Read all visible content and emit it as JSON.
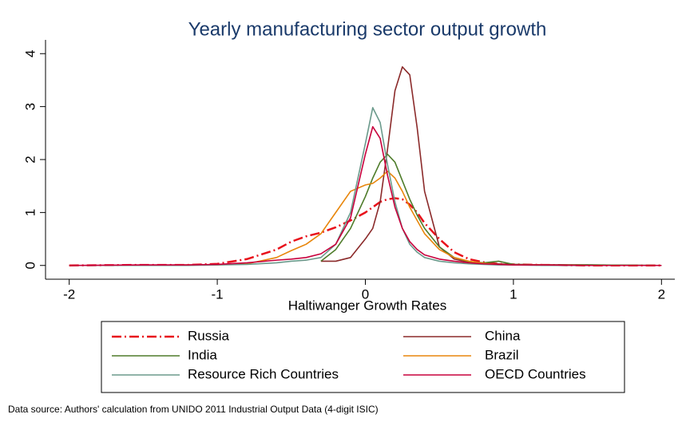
{
  "chart_data": {
    "type": "line",
    "title": "Yearly manufacturing sector output growth",
    "x_label": "Haltiwanger Growth Rates",
    "note": "Data source: Authors' calculation from UNIDO 2011 Industrial Output Data (4-digit ISIC)",
    "x": [
      -2,
      -1.5,
      -1.2,
      -1,
      -0.8,
      -0.6,
      -0.5,
      -0.4,
      -0.3,
      -0.2,
      -0.1,
      0,
      0.05,
      0.1,
      0.15,
      0.2,
      0.25,
      0.3,
      0.35,
      0.4,
      0.5,
      0.6,
      0.7,
      0.8,
      0.9,
      1,
      1.2,
      1.5,
      2
    ],
    "xlim": [
      -2.16,
      2.09
    ],
    "ylim": [
      -0.26,
      4.26
    ],
    "xticks": [
      -2,
      -1,
      0,
      1,
      2
    ],
    "yticks": [
      0,
      1,
      2,
      3,
      4
    ],
    "series": [
      {
        "name": "Russia",
        "color": "#e8111b",
        "line_style": "dash-dot",
        "values": [
          0,
          0.01,
          0.01,
          0.03,
          0.12,
          0.3,
          0.45,
          0.55,
          0.62,
          0.72,
          0.85,
          1.0,
          1.1,
          1.2,
          1.25,
          1.27,
          1.25,
          1.15,
          1.0,
          0.8,
          0.5,
          0.25,
          0.12,
          0.06,
          0.03,
          0.02,
          0.01,
          0,
          0
        ]
      },
      {
        "name": "China",
        "color": "#8b2a2a",
        "values": [
          null,
          null,
          null,
          null,
          null,
          null,
          null,
          null,
          0.08,
          0.08,
          0.15,
          0.5,
          0.7,
          1.2,
          2.2,
          3.3,
          3.75,
          3.6,
          2.6,
          1.4,
          0.35,
          0.12,
          0.06,
          0.04,
          0.03,
          0.02,
          0.01,
          0.01,
          0
        ]
      },
      {
        "name": "India",
        "color": "#4e7c2a",
        "values": [
          null,
          null,
          null,
          null,
          null,
          null,
          null,
          null,
          0.08,
          0.3,
          0.7,
          1.3,
          1.65,
          1.95,
          2.1,
          1.95,
          1.6,
          1.25,
          0.95,
          0.7,
          0.35,
          0.15,
          0.07,
          0.05,
          0.08,
          0.02,
          0.01,
          0.01,
          0
        ]
      },
      {
        "name": "Brazil",
        "color": "#e8860b",
        "values": [
          0,
          0,
          0.01,
          0.01,
          0.03,
          0.15,
          0.28,
          0.4,
          0.6,
          1.0,
          1.4,
          1.52,
          1.55,
          1.65,
          1.78,
          1.65,
          1.4,
          1.1,
          0.85,
          0.6,
          0.3,
          0.15,
          0.08,
          0.04,
          0.02,
          0.01,
          0.01,
          0,
          0
        ]
      },
      {
        "name": "Resource Rich Countries",
        "color": "#6b9a8c",
        "values": [
          0,
          0,
          0,
          0.01,
          0.02,
          0.05,
          0.08,
          0.1,
          0.15,
          0.4,
          1.0,
          2.3,
          2.98,
          2.7,
          1.9,
          1.2,
          0.7,
          0.4,
          0.25,
          0.15,
          0.08,
          0.05,
          0.03,
          0.02,
          0.01,
          0.01,
          0,
          0,
          0
        ]
      },
      {
        "name": "OECD Countries",
        "color": "#c8003c",
        "values": [
          0,
          0.01,
          0.01,
          0.02,
          0.05,
          0.1,
          0.12,
          0.15,
          0.22,
          0.4,
          0.9,
          2.1,
          2.62,
          2.4,
          1.7,
          1.1,
          0.7,
          0.45,
          0.3,
          0.2,
          0.12,
          0.08,
          0.05,
          0.03,
          0.02,
          0.01,
          0.01,
          0,
          0
        ]
      }
    ]
  }
}
